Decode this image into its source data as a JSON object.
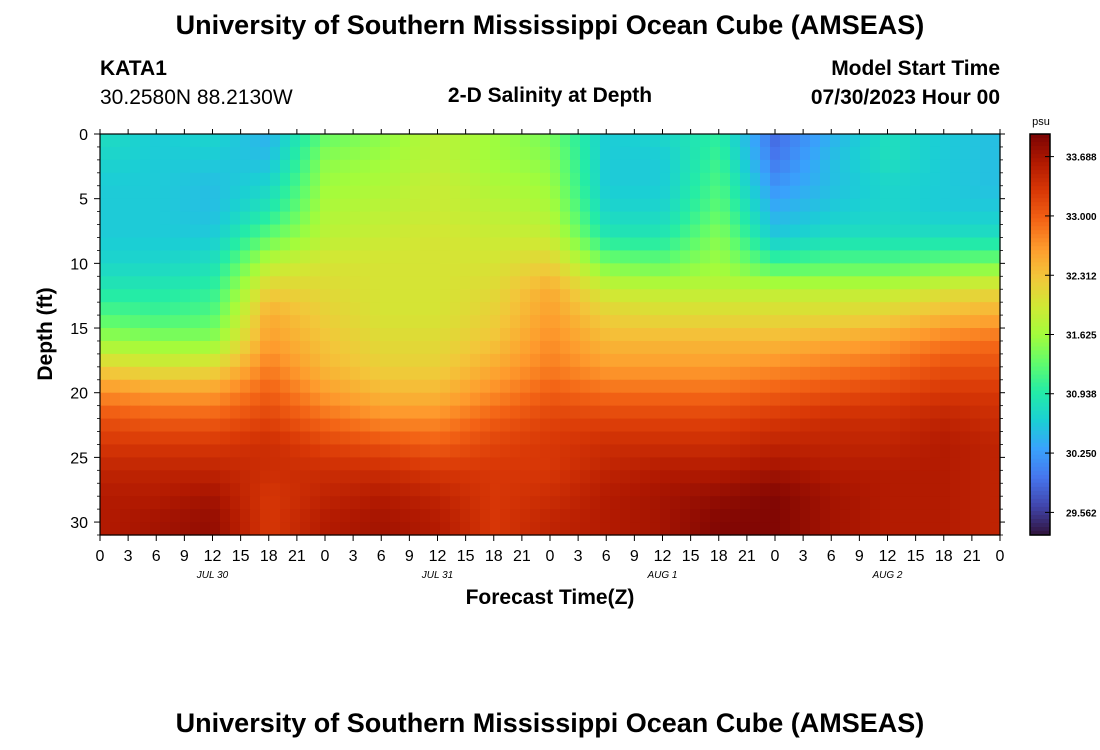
{
  "header": {
    "title": "University of Southern Mississippi Ocean Cube (AMSEAS)",
    "station_id": "KATA1",
    "coordinates": "30.2580N  88.2130W",
    "plot_title": "2-D Salinity at Depth",
    "model_start_label": "Model Start Time",
    "model_start_value": "07/30/2023 Hour 00"
  },
  "footer": {
    "title": "University of Southern Mississippi Ocean Cube (AMSEAS)"
  },
  "chart_data": {
    "type": "heatmap",
    "title": "2-D Salinity at Depth",
    "xlabel": "Forecast Time(Z)",
    "ylabel": "Depth (ft)",
    "x_hours_range": [
      0,
      96
    ],
    "x_tick_step_hours": 3,
    "x_tick_labels": [
      "0",
      "3",
      "6",
      "9",
      "12",
      "15",
      "18",
      "21",
      "0",
      "3",
      "6",
      "9",
      "12",
      "15",
      "18",
      "21",
      "0",
      "3",
      "6",
      "9",
      "12",
      "15",
      "18",
      "21",
      "0",
      "3",
      "6",
      "9",
      "12",
      "15",
      "18",
      "21",
      "0"
    ],
    "date_labels": [
      {
        "hour": 12,
        "label": "JUL 30"
      },
      {
        "hour": 36,
        "label": "JUL 31"
      },
      {
        "hour": 60,
        "label": "AUG 1"
      },
      {
        "hour": 84,
        "label": "AUG 2"
      }
    ],
    "ylim": [
      0,
      31
    ],
    "y_ticks": [
      0,
      5,
      10,
      15,
      20,
      25,
      30
    ],
    "colorbar": {
      "unit": "psu",
      "range": [
        29.3,
        33.95
      ],
      "tick_values": [
        29.562,
        30.25,
        30.938,
        31.625,
        32.312,
        33.0,
        33.688
      ],
      "tick_labels": [
        "29.562",
        "30.250",
        "30.938",
        "31.625",
        "32.312",
        "33.000",
        "33.688"
      ],
      "colormap": [
        "#30123b",
        "#4145ab",
        "#4675ed",
        "#39a2fc",
        "#1bcfd4",
        "#24eca6",
        "#61fc6c",
        "#a4fc3b",
        "#d1e834",
        "#f3c63a",
        "#fe9b2d",
        "#f36315",
        "#d93806",
        "#b11901",
        "#7a0403"
      ]
    },
    "depth_levels_ft": [
      0,
      2,
      4,
      6,
      8,
      10,
      12,
      14,
      16,
      18,
      20,
      22,
      24,
      26,
      28,
      30
    ],
    "time_hours": [
      0,
      6,
      12,
      18,
      24,
      30,
      36,
      42,
      48,
      54,
      60,
      66,
      72,
      78,
      84,
      90,
      96
    ],
    "salinity_psu": [
      [
        30.8,
        30.6,
        30.7,
        30.4,
        31.3,
        31.5,
        31.8,
        31.6,
        31.4,
        30.6,
        30.7,
        31.0,
        29.9,
        30.4,
        30.8,
        30.6,
        30.5
      ],
      [
        30.7,
        30.6,
        30.6,
        30.5,
        31.5,
        31.6,
        31.8,
        31.6,
        31.5,
        30.6,
        30.6,
        31.1,
        30.0,
        30.5,
        30.8,
        30.6,
        30.5
      ],
      [
        30.6,
        30.6,
        30.5,
        30.7,
        31.6,
        31.7,
        31.9,
        31.7,
        31.6,
        30.6,
        30.6,
        31.2,
        30.2,
        30.5,
        30.7,
        30.6,
        30.5
      ],
      [
        30.6,
        30.6,
        30.5,
        30.9,
        31.7,
        31.8,
        31.9,
        31.8,
        31.7,
        30.7,
        30.7,
        31.3,
        30.4,
        30.6,
        30.7,
        30.6,
        30.6
      ],
      [
        30.6,
        30.6,
        30.6,
        31.3,
        31.8,
        31.9,
        32.0,
        31.9,
        31.9,
        30.9,
        30.9,
        31.5,
        30.6,
        30.8,
        30.8,
        30.8,
        30.8
      ],
      [
        30.7,
        30.7,
        30.8,
        31.8,
        32.0,
        32.0,
        32.0,
        32.0,
        32.2,
        31.4,
        31.3,
        31.6,
        31.1,
        31.2,
        31.2,
        31.3,
        31.4
      ],
      [
        30.9,
        30.9,
        31.0,
        32.2,
        32.1,
        32.0,
        32.0,
        32.1,
        32.5,
        31.9,
        31.8,
        31.8,
        31.8,
        31.8,
        31.8,
        32.0,
        32.1
      ],
      [
        31.2,
        31.1,
        31.2,
        32.5,
        32.2,
        32.0,
        32.0,
        32.2,
        32.6,
        32.2,
        32.1,
        32.1,
        32.1,
        32.1,
        32.2,
        32.4,
        32.5
      ],
      [
        31.6,
        31.5,
        31.5,
        32.6,
        32.3,
        32.1,
        32.1,
        32.3,
        32.7,
        32.4,
        32.4,
        32.4,
        32.4,
        32.5,
        32.6,
        32.8,
        32.9
      ],
      [
        32.2,
        32.0,
        32.1,
        32.8,
        32.4,
        32.2,
        32.2,
        32.5,
        32.8,
        32.6,
        32.6,
        32.6,
        32.7,
        32.8,
        32.9,
        33.1,
        33.1
      ],
      [
        32.7,
        32.6,
        32.6,
        33.0,
        32.6,
        32.4,
        32.4,
        32.7,
        33.0,
        32.9,
        32.9,
        32.9,
        33.0,
        33.1,
        33.2,
        33.3,
        33.3
      ],
      [
        33.1,
        33.0,
        33.0,
        33.2,
        32.9,
        32.7,
        32.7,
        33.0,
        33.2,
        33.2,
        33.2,
        33.2,
        33.3,
        33.4,
        33.4,
        33.5,
        33.4
      ],
      [
        33.3,
        33.3,
        33.3,
        33.4,
        33.2,
        33.1,
        33.0,
        33.2,
        33.3,
        33.4,
        33.4,
        33.4,
        33.5,
        33.5,
        33.5,
        33.6,
        33.5
      ],
      [
        33.5,
        33.5,
        33.5,
        33.4,
        33.4,
        33.4,
        33.3,
        33.3,
        33.3,
        33.5,
        33.6,
        33.6,
        33.7,
        33.6,
        33.6,
        33.6,
        33.5
      ],
      [
        33.6,
        33.6,
        33.7,
        33.3,
        33.5,
        33.6,
        33.5,
        33.3,
        33.4,
        33.6,
        33.7,
        33.8,
        33.9,
        33.7,
        33.6,
        33.6,
        33.5
      ],
      [
        33.6,
        33.7,
        33.8,
        33.3,
        33.6,
        33.7,
        33.6,
        33.3,
        33.5,
        33.6,
        33.7,
        33.9,
        33.9,
        33.7,
        33.6,
        33.6,
        33.5
      ]
    ]
  }
}
